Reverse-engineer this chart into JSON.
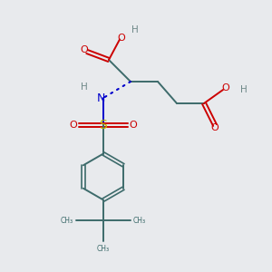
{
  "background_color": "#e8eaed",
  "bond_color": "#3d6b6b",
  "oxygen_color": "#cc0000",
  "nitrogen_color": "#0000cc",
  "sulfur_color": "#b8b800",
  "hydrogen_color": "#6e8888",
  "figsize": [
    3.0,
    3.0
  ],
  "dpi": 100,
  "xlim": [
    0,
    10
  ],
  "ylim": [
    0,
    10
  ]
}
